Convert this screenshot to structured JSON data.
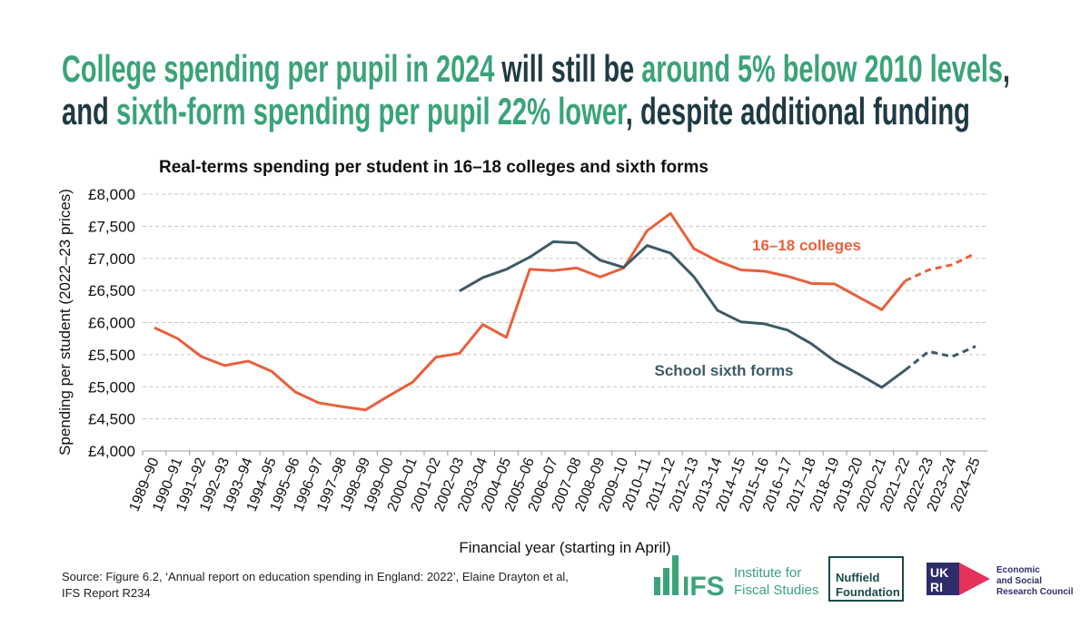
{
  "headline": {
    "lines": [
      [
        {
          "text": "College spending per pupil in 2024",
          "color": "#3aa37a"
        },
        {
          "text": " will still be ",
          "color": "#1f3a44"
        },
        {
          "text": "around 5% below 2010 levels",
          "color": "#3aa37a"
        },
        {
          "text": ",",
          "color": "#1f3a44"
        }
      ],
      [
        {
          "text": "and ",
          "color": "#1f3a44"
        },
        {
          "text": "sixth-form spending per pupil 22% lower",
          "color": "#3aa37a"
        },
        {
          "text": ", despite additional funding",
          "color": "#1f3a44"
        }
      ]
    ]
  },
  "chart_data": {
    "type": "line",
    "title": "Real-terms spending per student in 16–18 colleges and sixth forms",
    "x_label": "Financial year (starting in April)",
    "y_label": "Spending per student (2022–23 prices)",
    "categories": [
      "1989–90",
      "1990–91",
      "1991–92",
      "1992–93",
      "1993–94",
      "1994–95",
      "1995–96",
      "1996–97",
      "1997–98",
      "1998–99",
      "1999–00",
      "2000–01",
      "2001–02",
      "2002–03",
      "2003–04",
      "2004–05",
      "2005–06",
      "2006–07",
      "2007–08",
      "2008–09",
      "2009–10",
      "2010–11",
      "2011–12",
      "2012–13",
      "2013–14",
      "2014–15",
      "2015–16",
      "2016–17",
      "2017–18",
      "2018–19",
      "2019–20",
      "2020–21",
      "2021–22",
      "2022–23",
      "2023–24",
      "2024–25"
    ],
    "projection_from_index": 32,
    "series": [
      {
        "name": "16–18 colleges",
        "color": "#e8603c",
        "values": [
          5920,
          5750,
          5470,
          5330,
          5400,
          5240,
          4920,
          4750,
          4690,
          4640,
          4860,
          5070,
          5460,
          5520,
          5970,
          5770,
          6830,
          6810,
          6850,
          6710,
          6850,
          7430,
          7700,
          7150,
          6960,
          6820,
          6800,
          6720,
          6610,
          6600,
          6400,
          6200,
          6650,
          6820,
          6900,
          7080
        ]
      },
      {
        "name": "School sixth forms",
        "color": "#3d5a66",
        "values": [
          null,
          null,
          null,
          null,
          null,
          null,
          null,
          null,
          null,
          null,
          null,
          null,
          null,
          6490,
          6700,
          6830,
          7020,
          7260,
          7240,
          6970,
          6860,
          7200,
          7080,
          6710,
          6190,
          6010,
          5980,
          5880,
          5670,
          5400,
          5200,
          4990,
          5260,
          5550,
          5470,
          5630
        ]
      }
    ],
    "ylim": [
      4000,
      8000
    ],
    "yticks": [
      {
        "value": 4000,
        "label": "£4,000"
      },
      {
        "value": 4500,
        "label": "£4,500"
      },
      {
        "value": 5000,
        "label": "£5,000"
      },
      {
        "value": 5500,
        "label": "£5,500"
      },
      {
        "value": 6000,
        "label": "£6,000"
      },
      {
        "value": 6500,
        "label": "£6,500"
      },
      {
        "value": 7000,
        "label": "£7,000"
      },
      {
        "value": 7500,
        "label": "£7,500"
      },
      {
        "value": 8000,
        "label": "£8,000"
      }
    ],
    "grid": true
  },
  "footer": {
    "source": [
      "Source: Figure 6.2, ‘Annual report on education spending in England: 2022’, Elaine Drayton et al,",
      "IFS Report R234"
    ],
    "logos": {
      "ifs": "IFS",
      "ifs_name": [
        "Institute for",
        "Fiscal Studies"
      ],
      "nuffield": [
        "Nuffield",
        "Foundation"
      ],
      "ukri": [
        "UK",
        "RI"
      ],
      "esrc": [
        "Economic",
        "and Social",
        "Research Council"
      ]
    }
  }
}
